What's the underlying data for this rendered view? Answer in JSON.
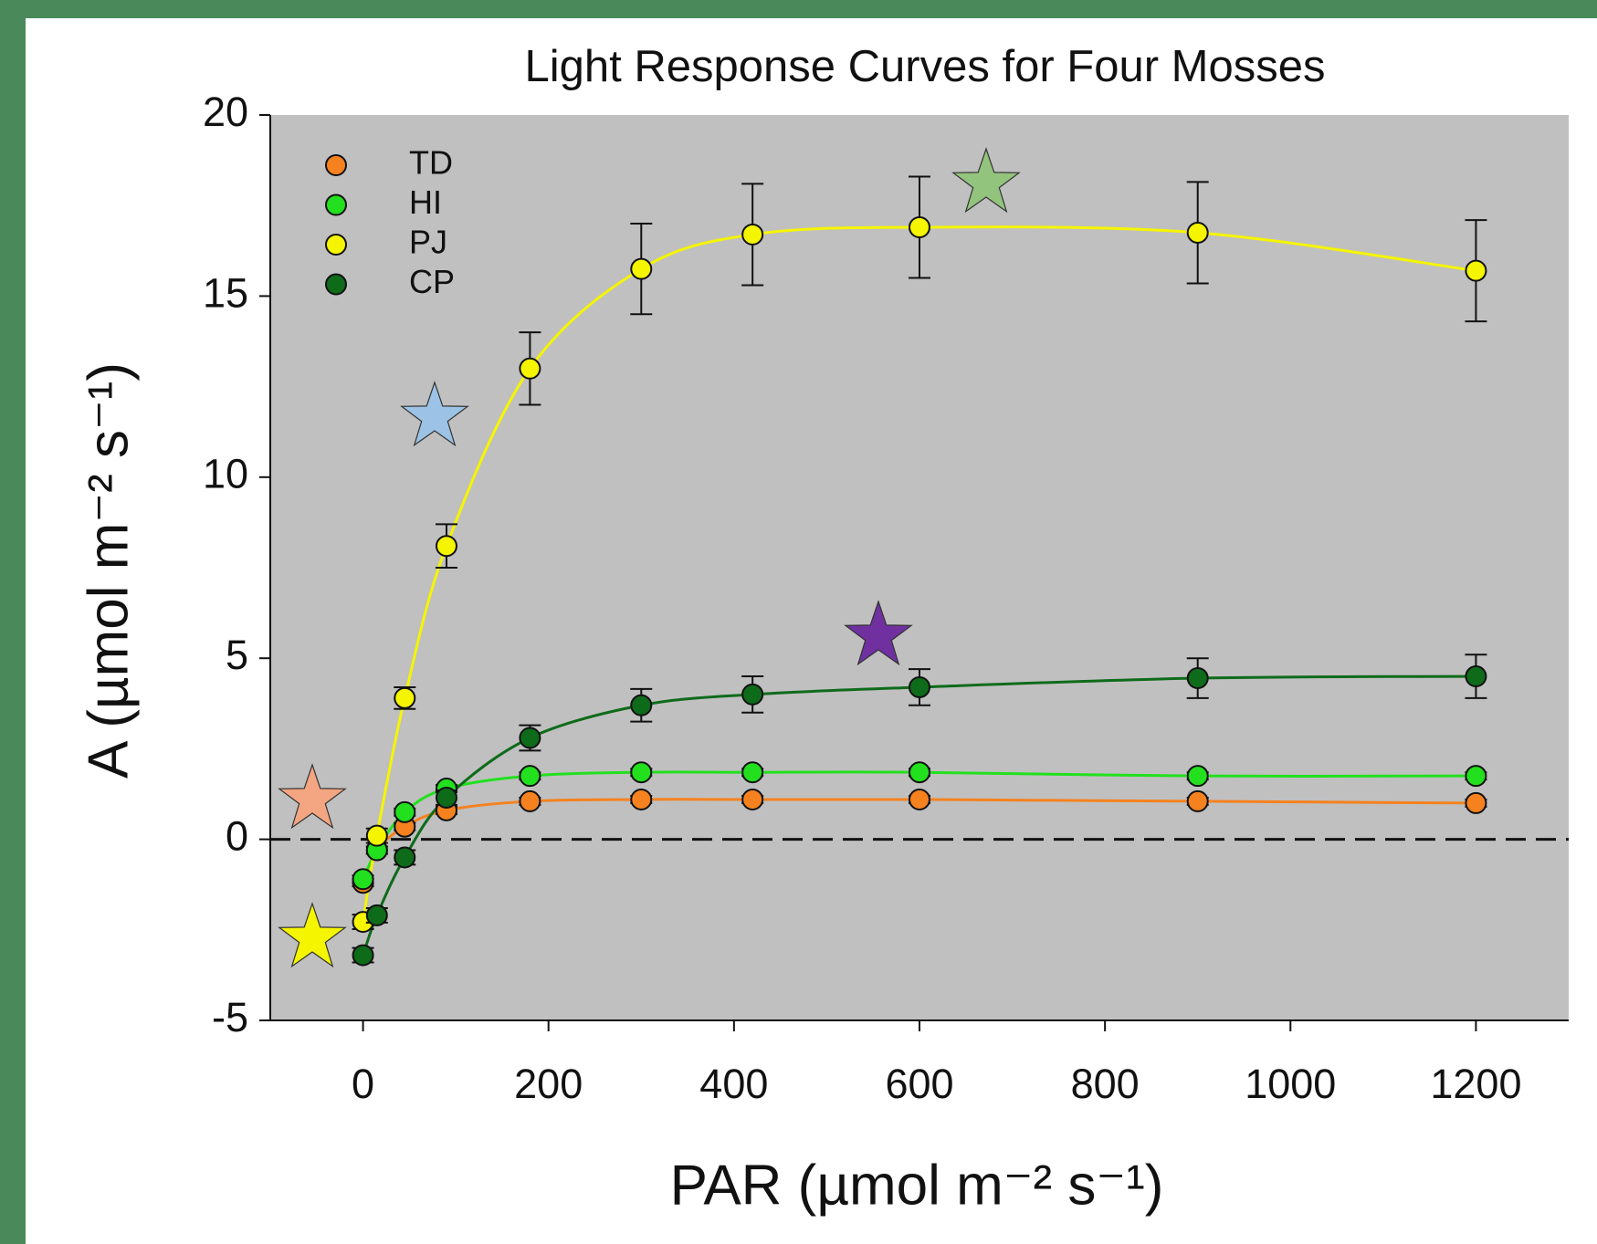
{
  "chart_data": {
    "type": "scatter",
    "title": "Light Response Curves for Four Mosses",
    "x_label": "PAR (µmol m⁻² s⁻¹)",
    "y_label": "A (µmol m⁻² s⁻¹)",
    "x": [
      0,
      15,
      45,
      90,
      180,
      300,
      420,
      600,
      900,
      1200
    ],
    "series": [
      {
        "name": "TD",
        "color": "#f5821f",
        "values": [
          -1.2,
          -0.3,
          0.35,
          0.8,
          1.05,
          1.1,
          1.1,
          1.1,
          1.05,
          1.0
        ],
        "errors": [
          0.1,
          0.1,
          0.1,
          0.1,
          0.1,
          0.1,
          0.1,
          0.1,
          0.1,
          0.1
        ]
      },
      {
        "name": "HI",
        "color": "#22e01e",
        "values": [
          -1.1,
          -0.3,
          0.75,
          1.4,
          1.75,
          1.85,
          1.85,
          1.85,
          1.75,
          1.75
        ],
        "errors": [
          0.1,
          0.1,
          0.1,
          0.1,
          0.1,
          0.1,
          0.1,
          0.1,
          0.1,
          0.1
        ]
      },
      {
        "name": "PJ",
        "color": "#f5f500",
        "values": [
          -2.28,
          0.1,
          3.9,
          8.1,
          13.0,
          15.75,
          16.7,
          16.9,
          16.75,
          15.7
        ],
        "errors": [
          0.2,
          0.2,
          0.3,
          0.6,
          1.0,
          1.25,
          1.4,
          1.4,
          1.4,
          1.4
        ]
      },
      {
        "name": "CP",
        "color": "#0e6b1a",
        "values": [
          -3.2,
          -2.1,
          -0.5,
          1.15,
          2.8,
          3.7,
          4.0,
          4.2,
          4.45,
          4.5
        ],
        "errors": [
          0.2,
          0.2,
          0.2,
          0.2,
          0.35,
          0.45,
          0.5,
          0.5,
          0.55,
          0.6
        ]
      }
    ],
    "xlim": [
      -100,
      1300
    ],
    "xticks": [
      0,
      200,
      400,
      600,
      800,
      1000,
      1200
    ],
    "ylim": [
      -5,
      20
    ],
    "yticks": [
      -5,
      0,
      5,
      10,
      15,
      20
    ],
    "legend": "upper left"
  }
}
